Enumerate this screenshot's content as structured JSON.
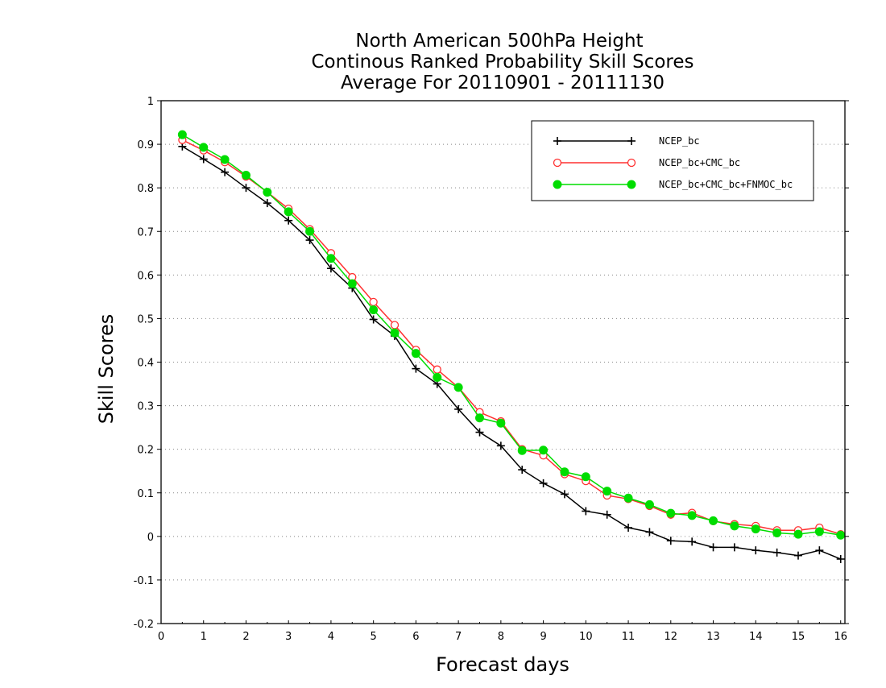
{
  "chart_data": {
    "type": "line",
    "title": [
      "North American 500hPa Height",
      "Continous Ranked Probability Skill Scores",
      "Average For 20110901 - 20111130"
    ],
    "xlabel": "Forecast days",
    "ylabel": "Skill Scores",
    "xlim": [
      0,
      16.1
    ],
    "ylim": [
      -0.2,
      1
    ],
    "x_ticks": [
      0,
      1,
      2,
      3,
      4,
      5,
      6,
      7,
      8,
      9,
      10,
      11,
      12,
      13,
      14,
      15,
      16
    ],
    "y_ticks": [
      -0.2,
      -0.1,
      0,
      0.1,
      0.2,
      0.3,
      0.4,
      0.5,
      0.6,
      0.7,
      0.8,
      0.9,
      1
    ],
    "y_tick_labels": [
      "-0.2",
      "-0.1",
      "0",
      "0.1",
      "0.2",
      "0.3",
      "0.4",
      "0.5",
      "0.6",
      "0.7",
      "0.8",
      "0.9",
      "1"
    ],
    "grid": "horizontal dotted",
    "legend_position": "top-right",
    "x": [
      0.5,
      1,
      1.5,
      2,
      2.5,
      3,
      3.5,
      4,
      4.5,
      5,
      5.5,
      6,
      6.5,
      7,
      7.5,
      8,
      8.5,
      9,
      9.5,
      10,
      10.5,
      11,
      11.5,
      12,
      12.5,
      13,
      13.5,
      14,
      14.5,
      15,
      15.5,
      16
    ],
    "series": [
      {
        "name": "NCEP_bc",
        "color": "#000000",
        "marker": "plus",
        "values": [
          0.895,
          0.866,
          0.836,
          0.8,
          0.765,
          0.725,
          0.68,
          0.615,
          0.57,
          0.498,
          0.46,
          0.385,
          0.35,
          0.292,
          0.239,
          0.208,
          0.153,
          0.122,
          0.097,
          0.058,
          0.05,
          0.02,
          0.01,
          -0.01,
          -0.012,
          -0.025,
          -0.025,
          -0.032,
          -0.037,
          -0.044,
          -0.032,
          -0.052
        ]
      },
      {
        "name": "NCEP_bc+CMC_bc",
        "color": "#ff3030",
        "marker": "open-circle",
        "values": [
          0.91,
          0.886,
          0.859,
          0.826,
          0.79,
          0.752,
          0.705,
          0.65,
          0.595,
          0.538,
          0.485,
          0.428,
          0.383,
          0.342,
          0.285,
          0.264,
          0.2,
          0.186,
          0.143,
          0.127,
          0.094,
          0.086,
          0.07,
          0.05,
          0.054,
          0.035,
          0.028,
          0.024,
          0.014,
          0.014,
          0.02,
          0.005
        ]
      },
      {
        "name": "NCEP_bc+CMC_bc+FNMOC_bc",
        "color": "#00dd00",
        "marker": "filled-circle",
        "values": [
          0.922,
          0.893,
          0.865,
          0.829,
          0.79,
          0.745,
          0.7,
          0.638,
          0.58,
          0.52,
          0.467,
          0.42,
          0.365,
          0.342,
          0.272,
          0.26,
          0.197,
          0.198,
          0.148,
          0.137,
          0.104,
          0.088,
          0.073,
          0.053,
          0.048,
          0.036,
          0.024,
          0.017,
          0.008,
          0.005,
          0.011,
          0.003
        ]
      }
    ]
  }
}
